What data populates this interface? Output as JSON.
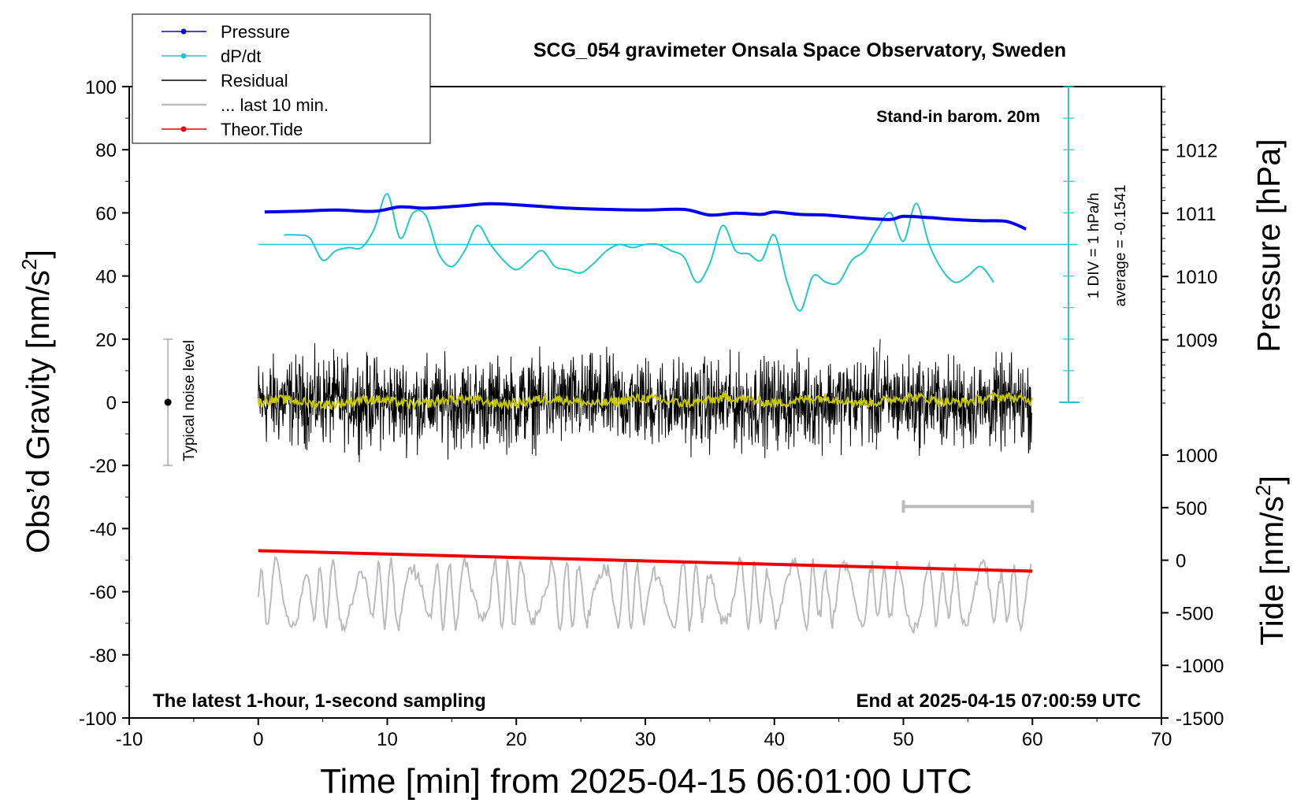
{
  "chart_data": {
    "type": "line",
    "title": "SCG_054 gravimeter Onsala Space Observatory, Sweden",
    "xlabel": "Time [min] from 2025-04-15 06:01:00 UTC",
    "ylabel_left_main": "Obs’d Gravity [nm/s",
    "ylabel_left_sup": "2",
    "ylabel_left_end": "]",
    "ylabel_right_pressure": "Pressure [hPa]",
    "ylabel_right_tide_main": "Tide [nm/s",
    "ylabel_right_tide_sup": "2",
    "ylabel_right_tide_end": "]",
    "xlim": [
      -10,
      70
    ],
    "ylim_left": [
      -100,
      100
    ],
    "ylim_pressure": [
      1008,
      1013
    ],
    "ylim_tide": [
      -1500,
      1000
    ],
    "x_ticks": [
      "-10",
      "0",
      "10",
      "20",
      "30",
      "40",
      "50",
      "60",
      "70"
    ],
    "y_ticks_left": [
      "100",
      "80",
      "60",
      "40",
      "20",
      "0",
      "-20",
      "-40",
      "-60",
      "-80",
      "-100"
    ],
    "y_ticks_pressure": [
      "1012",
      "1011",
      "1010",
      "1009"
    ],
    "y_ticks_tide": [
      "1000",
      "500",
      "0",
      "-500",
      "-1000",
      "-1500"
    ],
    "annotations": {
      "barometer": "Stand-in barom. 20m",
      "dpdt_scale": "1 DIV = 1 hPa/h",
      "dpdt_average": "average = -0.1541",
      "noise_label": "Typical noise level",
      "bottom_left": "The latest 1-hour, 1-second sampling",
      "bottom_right": "End at 2025-04-15 07:00:59 UTC"
    },
    "legend": {
      "position": "top-left",
      "entries": [
        {
          "label": "Pressure",
          "color": "#0000ee",
          "marker": true
        },
        {
          "label": "dP/dt",
          "color": "#22c8c8",
          "marker": true
        },
        {
          "label": "Residual",
          "color": "#000000",
          "marker": false
        },
        {
          "label": "... last 10 min.",
          "color": "#bbbbbb",
          "marker": false
        },
        {
          "label": "Theor.Tide",
          "color": "#ee0000",
          "marker": true
        }
      ]
    },
    "series": [
      {
        "name": "Pressure",
        "axis": "pressure",
        "color": "#0000ee",
        "x": [
          0.5,
          3,
          6,
          9,
          11,
          13,
          16,
          18,
          21,
          24,
          27,
          30,
          33,
          35,
          37,
          39,
          40,
          42,
          44,
          47,
          49,
          50,
          52,
          54,
          56,
          58,
          59.5
        ],
        "y": [
          1011.02,
          1011.03,
          1011.05,
          1011.03,
          1011.1,
          1011.08,
          1011.12,
          1011.15,
          1011.12,
          1011.08,
          1011.06,
          1011.05,
          1011.06,
          1010.97,
          1011.0,
          1010.98,
          1011.02,
          1010.98,
          1010.97,
          1010.92,
          1010.9,
          1010.95,
          1010.93,
          1010.9,
          1010.88,
          1010.87,
          1010.75
        ]
      },
      {
        "name": "dP/dt",
        "axis": "left",
        "color": "#22c8c8",
        "baseline": 50,
        "x": [
          2,
          3,
          4,
          5,
          6,
          7,
          8,
          9,
          10,
          11,
          12,
          13,
          14,
          15,
          16,
          17,
          18,
          19,
          20,
          21,
          22,
          23,
          24,
          25,
          26,
          27,
          28,
          29,
          30,
          31,
          32,
          33,
          34,
          35,
          36,
          37,
          38,
          39,
          40,
          41,
          42,
          43,
          44,
          45,
          46,
          47,
          48,
          49,
          50,
          51,
          52,
          53,
          54,
          55,
          56,
          57
        ],
        "y": [
          53,
          53,
          52,
          45,
          48,
          49,
          49,
          55,
          66,
          52,
          60,
          59,
          47,
          43,
          48,
          56,
          50,
          45,
          42,
          45,
          48,
          43,
          42,
          41,
          44,
          48,
          50,
          49,
          50,
          50,
          48,
          46,
          38,
          44,
          56,
          48,
          47,
          45,
          53,
          38,
          29,
          40,
          38,
          38,
          45,
          48,
          55,
          60,
          51,
          63,
          50,
          42,
          38,
          40,
          43,
          38
        ]
      },
      {
        "name": "Residual",
        "axis": "left",
        "color": "#000000",
        "x_range": [
          0,
          60
        ],
        "typical_amplitude": 8,
        "min": -15,
        "max": 20
      },
      {
        "name": "Residual (smoothed)",
        "axis": "left",
        "color": "#c8c800",
        "x_range": [
          0,
          60
        ],
        "typical_amplitude": 1.5
      },
      {
        "name": "... last 10 min.",
        "axis": "left",
        "color": "#bbbbbb",
        "x_range": [
          0,
          60
        ],
        "center": -61,
        "min": -75,
        "max": -49,
        "bracket_x": [
          50,
          60
        ],
        "bracket_y": -33
      },
      {
        "name": "Theor.Tide",
        "axis": "left",
        "color": "#ee0000",
        "x": [
          0,
          60
        ],
        "y": [
          -47,
          -53.5
        ]
      }
    ],
    "noise_level": {
      "x": -7,
      "center": 0,
      "range": [
        -20,
        20
      ]
    },
    "grid": false
  }
}
